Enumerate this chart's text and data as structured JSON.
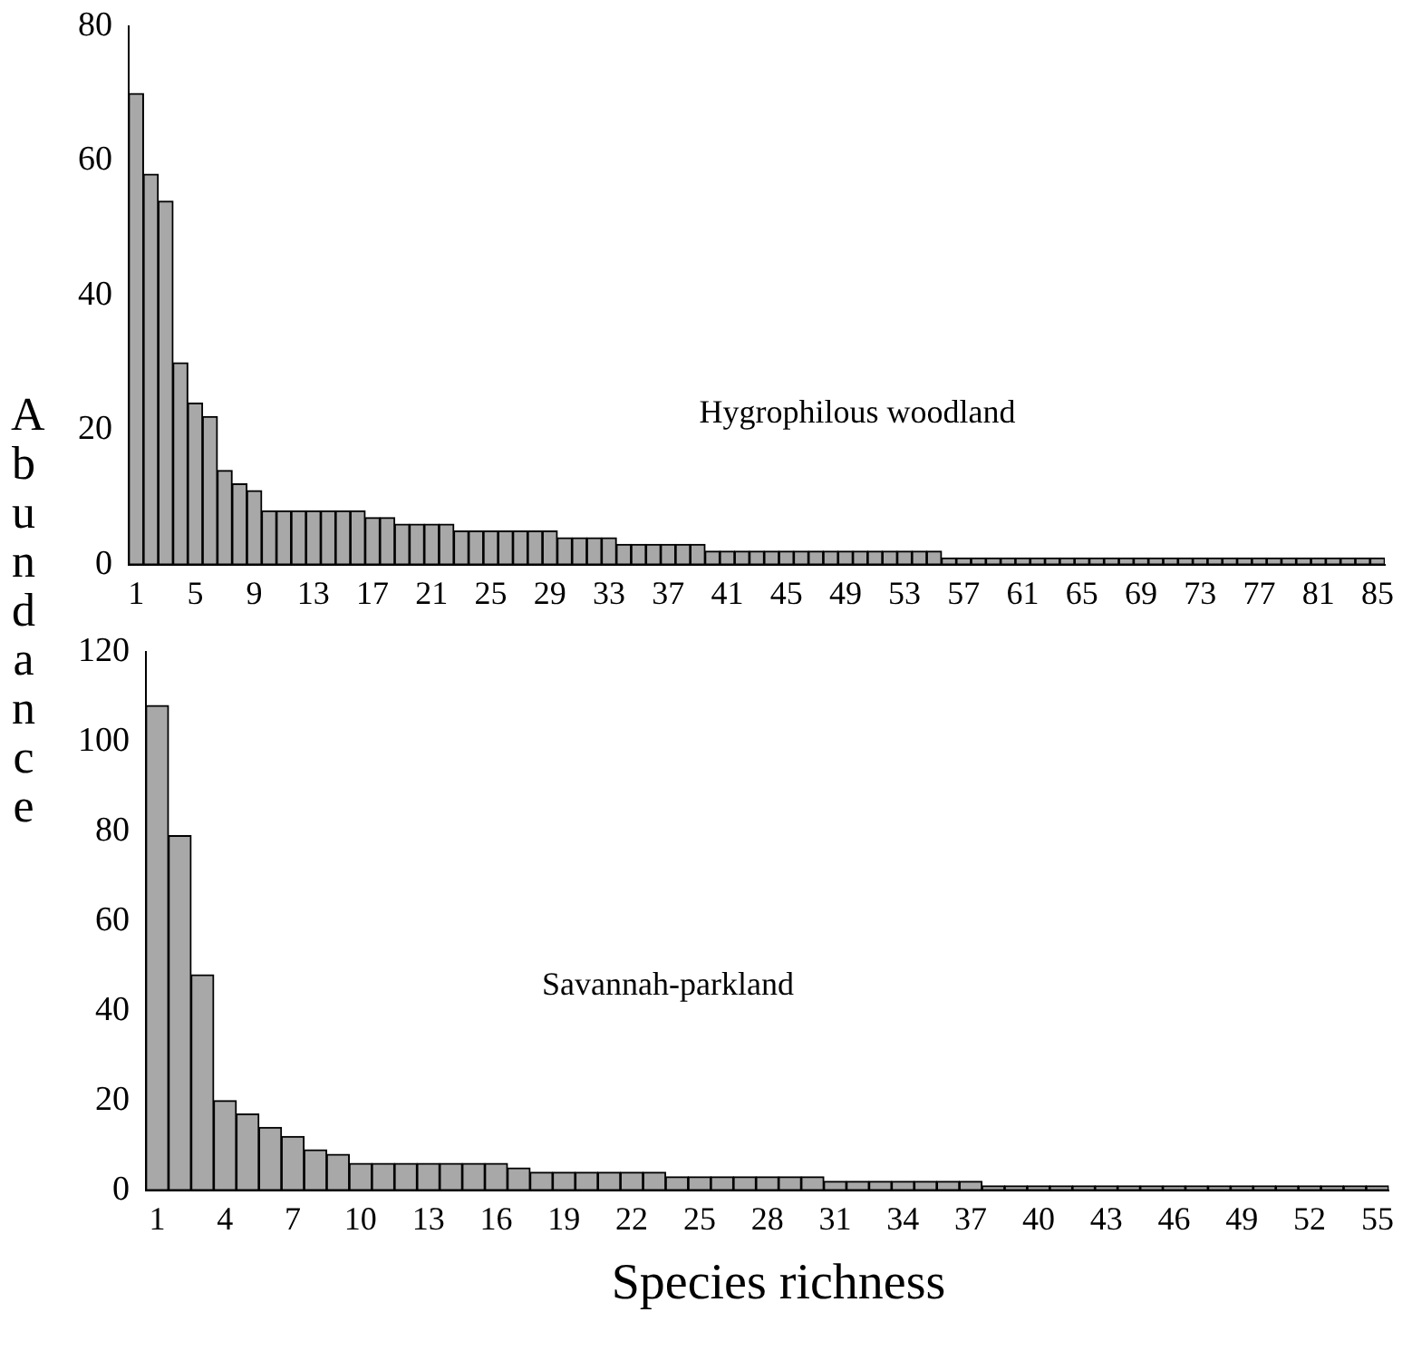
{
  "chart_data": [
    {
      "type": "bar",
      "ylabel": "Abundance",
      "annotations": [
        "Hygrophilous woodland"
      ],
      "categories": [
        "1",
        null,
        null,
        null,
        "5",
        null,
        null,
        null,
        "9",
        null,
        null,
        null,
        "13",
        null,
        null,
        null,
        "17",
        null,
        null,
        null,
        "21",
        null,
        null,
        null,
        "25",
        null,
        null,
        null,
        "29",
        null,
        null,
        null,
        "33",
        null,
        null,
        null,
        "37",
        null,
        null,
        null,
        "41",
        null,
        null,
        null,
        "45",
        null,
        null,
        null,
        "49",
        null,
        null,
        null,
        "53",
        null,
        null,
        null,
        "57",
        null,
        null,
        null,
        "61",
        null,
        null,
        null,
        "65",
        null,
        null,
        null,
        "69",
        null,
        null,
        null,
        "73",
        null,
        null,
        null,
        "77",
        null,
        null,
        null,
        "81",
        null,
        null,
        null,
        "85"
      ],
      "values": [
        70,
        58,
        54,
        30,
        24,
        22,
        14,
        12,
        11,
        8,
        8,
        8,
        8,
        8,
        8,
        8,
        7,
        7,
        6,
        6,
        6,
        6,
        5,
        5,
        5,
        5,
        5,
        5,
        5,
        4,
        4,
        4,
        4,
        3,
        3,
        3,
        3,
        3,
        3,
        2,
        2,
        2,
        2,
        2,
        2,
        2,
        2,
        2,
        2,
        2,
        2,
        2,
        2,
        2,
        2,
        1,
        1,
        1,
        1,
        1,
        1,
        1,
        1,
        1,
        1,
        1,
        1,
        1,
        1,
        1,
        1,
        1,
        1,
        1,
        1,
        1,
        1,
        1,
        1,
        1,
        1,
        1,
        1,
        1,
        1
      ],
      "color": "#a8a8a8",
      "ylim": [
        0,
        80
      ],
      "yticks": [
        0,
        20,
        40,
        60,
        80
      ],
      "grid": false
    },
    {
      "type": "bar",
      "xlabel": "Species richness",
      "annotations": [
        "Savannah-parkland"
      ],
      "categories": [
        "1",
        null,
        null,
        "4",
        null,
        null,
        "7",
        null,
        null,
        "10",
        null,
        null,
        "13",
        null,
        null,
        "16",
        null,
        null,
        "19",
        null,
        null,
        "22",
        null,
        null,
        "25",
        null,
        null,
        "28",
        null,
        null,
        "31",
        null,
        null,
        "34",
        null,
        null,
        "37",
        null,
        null,
        "40",
        null,
        null,
        "43",
        null,
        null,
        "46",
        null,
        null,
        "49",
        null,
        null,
        "52",
        null,
        null,
        "55"
      ],
      "values": [
        108,
        79,
        48,
        20,
        17,
        14,
        12,
        9,
        8,
        6,
        6,
        6,
        6,
        6,
        6,
        6,
        5,
        4,
        4,
        4,
        4,
        4,
        4,
        3,
        3,
        3,
        3,
        3,
        3,
        3,
        2,
        2,
        2,
        2,
        2,
        2,
        2,
        1,
        1,
        1,
        1,
        1,
        1,
        1,
        1,
        1,
        1,
        1,
        1,
        1,
        1,
        1,
        1,
        1,
        1
      ],
      "color": "#a8a8a8",
      "ylim": [
        0,
        120
      ],
      "yticks": [
        0,
        20,
        40,
        60,
        80,
        100,
        120
      ],
      "grid": false
    }
  ]
}
